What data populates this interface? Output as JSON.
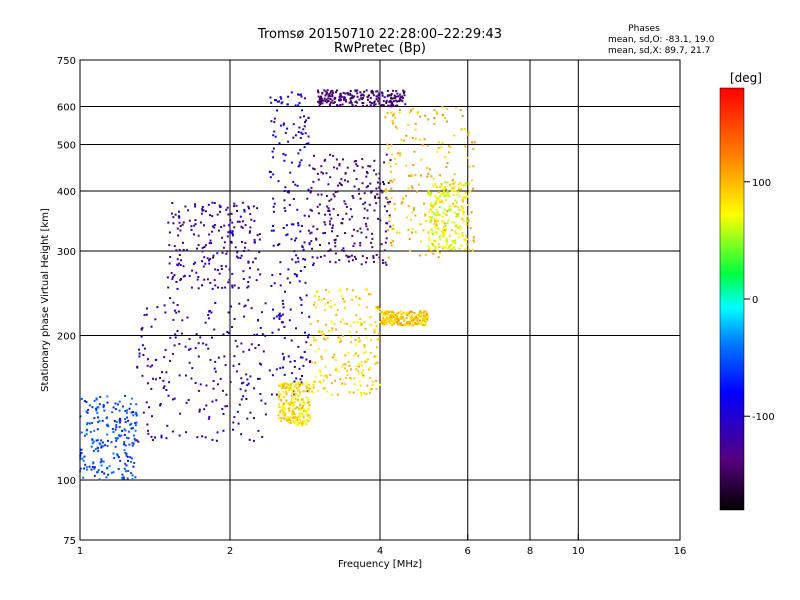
{
  "title_line1": "Tromsø 20150710 22:28:00–22:29:43",
  "title_line2": "RwPretec (Bp)",
  "phases": {
    "heading": "Phases",
    "line_o": "mean, sd,O: -83.1, 19.0",
    "line_x": "mean, sd,X: 89.7, 21.7"
  },
  "colorbar": {
    "unit_label": "[deg]",
    "ticks": [
      "100",
      "0",
      "-100"
    ],
    "range": [
      -180,
      180
    ]
  },
  "chart_data": {
    "type": "scatter",
    "xlabel": "Frequency [MHz]",
    "ylabel": "Stationary phase Virtual Height [km]",
    "xscale": "log",
    "yscale": "log",
    "xlim": [
      1,
      16
    ],
    "ylim": [
      75,
      750
    ],
    "xticks": [
      1,
      2,
      4,
      6,
      8,
      10,
      16
    ],
    "yticks": [
      75,
      100,
      200,
      300,
      400,
      500,
      600,
      750
    ],
    "grid_x": [
      2,
      4,
      6,
      8,
      10
    ],
    "grid_y": [
      100,
      200,
      300,
      400,
      500,
      600
    ],
    "color_variable": "phase [deg]",
    "clusters": [
      {
        "x_range": [
          1.0,
          1.3
        ],
        "y_range": [
          100,
          150
        ],
        "phase": -55
      },
      {
        "x_range": [
          1.3,
          2.4
        ],
        "y_range": [
          120,
          240
        ],
        "phase": -110
      },
      {
        "x_range": [
          1.5,
          2.3
        ],
        "y_range": [
          250,
          380
        ],
        "phase": -115
      },
      {
        "x_range": [
          2.4,
          2.9
        ],
        "y_range": [
          150,
          650
        ],
        "phase": -95
      },
      {
        "x_range": [
          2.5,
          2.9
        ],
        "y_range": [
          130,
          160
        ],
        "phase": 85
      },
      {
        "x_range": [
          2.9,
          4.0
        ],
        "y_range": [
          150,
          250
        ],
        "phase": 90
      },
      {
        "x_range": [
          2.9,
          4.2
        ],
        "y_range": [
          280,
          480
        ],
        "phase": -130
      },
      {
        "x_range": [
          3.0,
          4.5
        ],
        "y_range": [
          600,
          650
        ],
        "phase": -140
      },
      {
        "x_range": [
          4.1,
          6.2
        ],
        "y_range": [
          290,
          600
        ],
        "phase": 100
      },
      {
        "x_range": [
          4.0,
          5.0
        ],
        "y_range": [
          210,
          225
        ],
        "phase": 95
      },
      {
        "x_range": [
          5.0,
          6.0
        ],
        "y_range": [
          300,
          420
        ],
        "phase": 70
      }
    ]
  }
}
